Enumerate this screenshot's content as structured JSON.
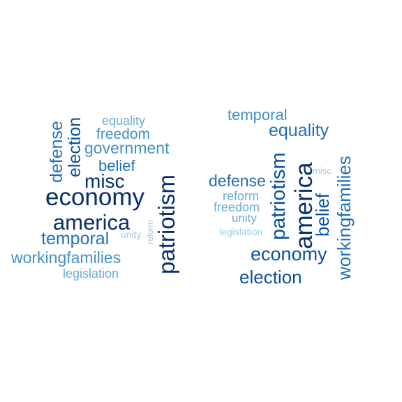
{
  "colors": {
    "darkest": "#08306b",
    "dark": "#08519c",
    "mid": "#2171b5",
    "medium": "#4292c6",
    "light": "#6baed6",
    "lightest": "#9ecae1",
    "background": "#ffffff"
  },
  "clouds": [
    {
      "words": [
        {
          "text": "equality"
        },
        {
          "text": "freedom"
        },
        {
          "text": "government"
        },
        {
          "text": "belief"
        },
        {
          "text": "misc"
        },
        {
          "text": "economy"
        },
        {
          "text": "america"
        },
        {
          "text": "temporal"
        },
        {
          "text": "unity"
        },
        {
          "text": "workingfamilies"
        },
        {
          "text": "legislation"
        },
        {
          "text": "defense"
        },
        {
          "text": "election"
        },
        {
          "text": "reform"
        },
        {
          "text": "patriotism"
        }
      ]
    },
    {
      "words": [
        {
          "text": "temporal"
        },
        {
          "text": "equality"
        },
        {
          "text": "defense"
        },
        {
          "text": "reform"
        },
        {
          "text": "freedom"
        },
        {
          "text": "unity"
        },
        {
          "text": "legislation"
        },
        {
          "text": "misc"
        },
        {
          "text": "economy"
        },
        {
          "text": "election"
        },
        {
          "text": "patriotism"
        },
        {
          "text": "america"
        },
        {
          "text": "belief"
        },
        {
          "text": "workingfamilies"
        }
      ]
    }
  ]
}
